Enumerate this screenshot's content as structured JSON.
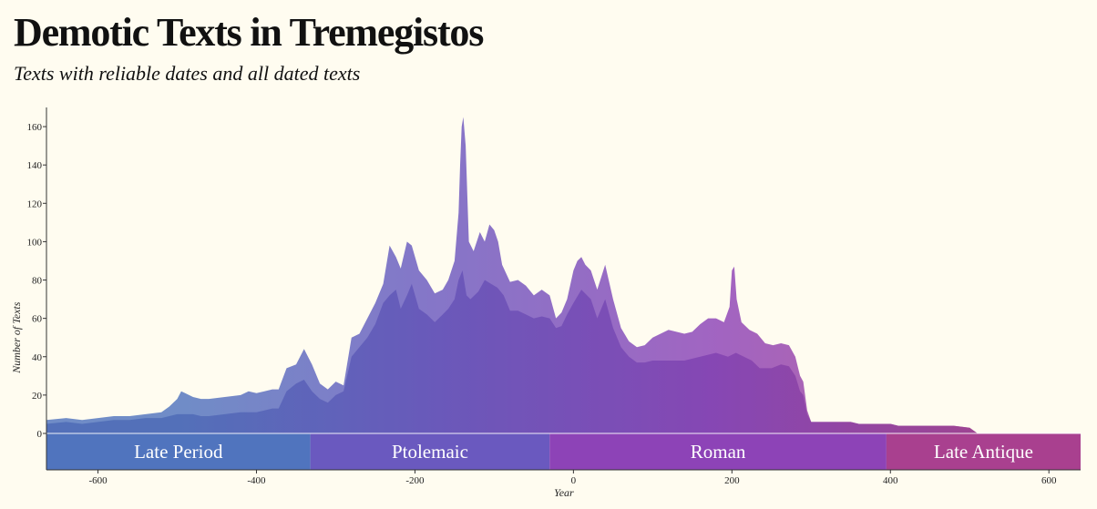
{
  "title": "Demotic Texts in Tremegistos",
  "subtitle": "Texts with reliable dates and all dated texts",
  "chart_data": {
    "type": "area",
    "title": "Demotic Texts in Tremegistos",
    "subtitle": "Texts with reliable dates and all dated texts",
    "xlabel": "Year",
    "ylabel": "Number of Texts",
    "xlim": [
      -665,
      640
    ],
    "ylim": [
      -19,
      170
    ],
    "x_ticks": [
      -600,
      -400,
      -200,
      0,
      200,
      400,
      600
    ],
    "y_ticks": [
      0,
      20,
      40,
      60,
      80,
      100,
      120,
      140,
      160
    ],
    "grid": false,
    "legend": "none",
    "series": [
      {
        "description": "all dated texts",
        "values": [
          [
            -665,
            7
          ],
          [
            -640,
            8
          ],
          [
            -620,
            7
          ],
          [
            -600,
            8
          ],
          [
            -580,
            9
          ],
          [
            -560,
            9
          ],
          [
            -540,
            10
          ],
          [
            -520,
            11
          ],
          [
            -510,
            14
          ],
          [
            -500,
            18
          ],
          [
            -495,
            22
          ],
          [
            -490,
            21
          ],
          [
            -480,
            19
          ],
          [
            -470,
            18
          ],
          [
            -460,
            18
          ],
          [
            -440,
            19
          ],
          [
            -420,
            20
          ],
          [
            -410,
            22
          ],
          [
            -400,
            21
          ],
          [
            -390,
            22
          ],
          [
            -380,
            23
          ],
          [
            -372,
            23
          ],
          [
            -362,
            34
          ],
          [
            -350,
            36
          ],
          [
            -340,
            44
          ],
          [
            -330,
            36
          ],
          [
            -320,
            26
          ],
          [
            -310,
            23
          ],
          [
            -300,
            27
          ],
          [
            -290,
            25
          ],
          [
            -280,
            50
          ],
          [
            -270,
            52
          ],
          [
            -260,
            60
          ],
          [
            -250,
            68
          ],
          [
            -240,
            78
          ],
          [
            -232,
            98
          ],
          [
            -224,
            92
          ],
          [
            -218,
            86
          ],
          [
            -210,
            100
          ],
          [
            -204,
            98
          ],
          [
            -195,
            85
          ],
          [
            -185,
            80
          ],
          [
            -175,
            73
          ],
          [
            -165,
            75
          ],
          [
            -158,
            80
          ],
          [
            -150,
            90
          ],
          [
            -145,
            115
          ],
          [
            -143,
            140
          ],
          [
            -141,
            160
          ],
          [
            -139,
            165
          ],
          [
            -136,
            150
          ],
          [
            -132,
            100
          ],
          [
            -126,
            95
          ],
          [
            -118,
            105
          ],
          [
            -112,
            100
          ],
          [
            -106,
            109
          ],
          [
            -100,
            106
          ],
          [
            -95,
            100
          ],
          [
            -90,
            88
          ],
          [
            -80,
            79
          ],
          [
            -70,
            80
          ],
          [
            -60,
            77
          ],
          [
            -50,
            72
          ],
          [
            -40,
            75
          ],
          [
            -30,
            72
          ],
          [
            -22,
            60
          ],
          [
            -15,
            63
          ],
          [
            -8,
            70
          ],
          [
            0,
            85
          ],
          [
            5,
            90
          ],
          [
            10,
            92
          ],
          [
            15,
            88
          ],
          [
            22,
            85
          ],
          [
            30,
            75
          ],
          [
            40,
            88
          ],
          [
            50,
            70
          ],
          [
            60,
            55
          ],
          [
            70,
            48
          ],
          [
            80,
            45
          ],
          [
            90,
            46
          ],
          [
            100,
            50
          ],
          [
            110,
            52
          ],
          [
            120,
            54
          ],
          [
            130,
            53
          ],
          [
            140,
            52
          ],
          [
            150,
            53
          ],
          [
            160,
            57
          ],
          [
            170,
            60
          ],
          [
            180,
            60
          ],
          [
            190,
            58
          ],
          [
            197,
            66
          ],
          [
            200,
            85
          ],
          [
            203,
            87
          ],
          [
            206,
            70
          ],
          [
            212,
            58
          ],
          [
            222,
            54
          ],
          [
            232,
            52
          ],
          [
            242,
            47
          ],
          [
            252,
            46
          ],
          [
            262,
            47
          ],
          [
            272,
            46
          ],
          [
            280,
            40
          ],
          [
            286,
            30
          ],
          [
            290,
            27
          ],
          [
            295,
            12
          ],
          [
            300,
            6
          ],
          [
            350,
            6
          ],
          [
            360,
            5
          ],
          [
            400,
            5
          ],
          [
            410,
            4
          ],
          [
            480,
            4
          ],
          [
            500,
            3
          ],
          [
            510,
            0
          ],
          [
            640,
            0
          ]
        ]
      },
      {
        "description": "texts with reliable dates",
        "values": [
          [
            -665,
            5
          ],
          [
            -640,
            6
          ],
          [
            -620,
            5
          ],
          [
            -600,
            6
          ],
          [
            -580,
            7
          ],
          [
            -560,
            7
          ],
          [
            -540,
            8
          ],
          [
            -520,
            8
          ],
          [
            -510,
            9
          ],
          [
            -500,
            10
          ],
          [
            -490,
            10
          ],
          [
            -480,
            10
          ],
          [
            -470,
            9
          ],
          [
            -460,
            9
          ],
          [
            -440,
            10
          ],
          [
            -420,
            11
          ],
          [
            -400,
            11
          ],
          [
            -390,
            12
          ],
          [
            -380,
            13
          ],
          [
            -372,
            13
          ],
          [
            -362,
            22
          ],
          [
            -350,
            26
          ],
          [
            -340,
            28
          ],
          [
            -330,
            22
          ],
          [
            -320,
            18
          ],
          [
            -310,
            16
          ],
          [
            -300,
            20
          ],
          [
            -290,
            22
          ],
          [
            -280,
            40
          ],
          [
            -270,
            45
          ],
          [
            -260,
            50
          ],
          [
            -250,
            57
          ],
          [
            -240,
            68
          ],
          [
            -232,
            72
          ],
          [
            -224,
            75
          ],
          [
            -218,
            65
          ],
          [
            -210,
            72
          ],
          [
            -204,
            78
          ],
          [
            -195,
            65
          ],
          [
            -185,
            62
          ],
          [
            -175,
            58
          ],
          [
            -165,
            62
          ],
          [
            -158,
            65
          ],
          [
            -150,
            70
          ],
          [
            -145,
            80
          ],
          [
            -140,
            85
          ],
          [
            -135,
            72
          ],
          [
            -130,
            70
          ],
          [
            -120,
            74
          ],
          [
            -112,
            80
          ],
          [
            -104,
            78
          ],
          [
            -96,
            76
          ],
          [
            -88,
            72
          ],
          [
            -80,
            64
          ],
          [
            -70,
            64
          ],
          [
            -60,
            62
          ],
          [
            -50,
            60
          ],
          [
            -40,
            61
          ],
          [
            -30,
            60
          ],
          [
            -22,
            55
          ],
          [
            -15,
            56
          ],
          [
            -8,
            62
          ],
          [
            0,
            68
          ],
          [
            10,
            75
          ],
          [
            22,
            70
          ],
          [
            30,
            60
          ],
          [
            40,
            70
          ],
          [
            50,
            55
          ],
          [
            60,
            45
          ],
          [
            70,
            40
          ],
          [
            80,
            37
          ],
          [
            90,
            37
          ],
          [
            100,
            38
          ],
          [
            120,
            38
          ],
          [
            140,
            38
          ],
          [
            160,
            40
          ],
          [
            180,
            42
          ],
          [
            195,
            40
          ],
          [
            205,
            42
          ],
          [
            215,
            40
          ],
          [
            225,
            38
          ],
          [
            235,
            34
          ],
          [
            250,
            34
          ],
          [
            262,
            36
          ],
          [
            272,
            35
          ],
          [
            280,
            30
          ],
          [
            286,
            22
          ],
          [
            290,
            20
          ],
          [
            295,
            10
          ],
          [
            300,
            6
          ],
          [
            350,
            6
          ],
          [
            360,
            5
          ],
          [
            400,
            5
          ],
          [
            410,
            4
          ],
          [
            480,
            4
          ],
          [
            500,
            3
          ],
          [
            510,
            0
          ],
          [
            640,
            0
          ]
        ]
      }
    ],
    "periods": [
      {
        "label": "Late Period",
        "start": -665,
        "end": -332,
        "color": "#5074be"
      },
      {
        "label": "Ptolemaic",
        "start": -332,
        "end": -30,
        "color": "#6a59bf"
      },
      {
        "label": "Roman",
        "start": -30,
        "end": 395,
        "color": "#8d43b7"
      },
      {
        "label": "Late Antique",
        "start": 395,
        "end": 640,
        "color": "#a9408f"
      }
    ]
  }
}
